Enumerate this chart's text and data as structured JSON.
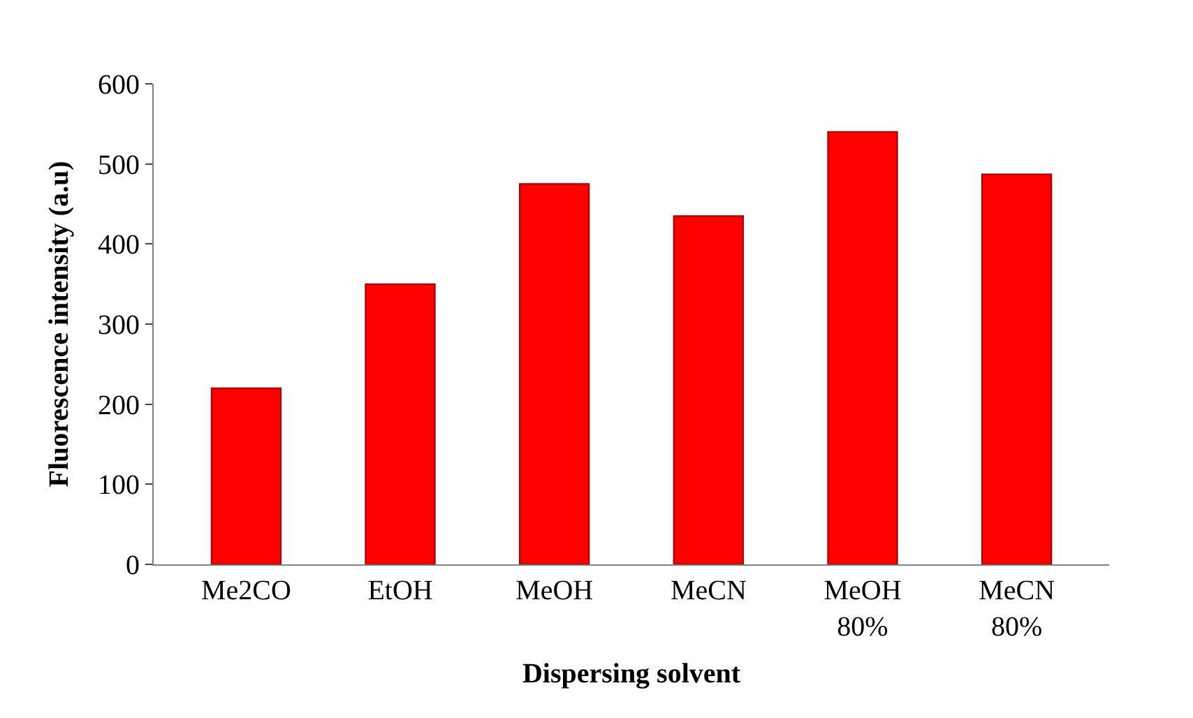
{
  "chart_data": {
    "type": "bar",
    "xlabel": "Dispersing solvent",
    "ylabel": "Fluorescence intensity (a.u)",
    "categories": [
      "Me2CO",
      "EtOH",
      "MeOH",
      "MeCN",
      "MeOH 80%",
      "MeCN 80%"
    ],
    "values": [
      220,
      350,
      475,
      435,
      540,
      487
    ],
    "color": "#ff0000",
    "ylim": [
      0,
      600
    ],
    "yticks": [
      0,
      100,
      200,
      300,
      400,
      500,
      600
    ],
    "legend": false
  }
}
